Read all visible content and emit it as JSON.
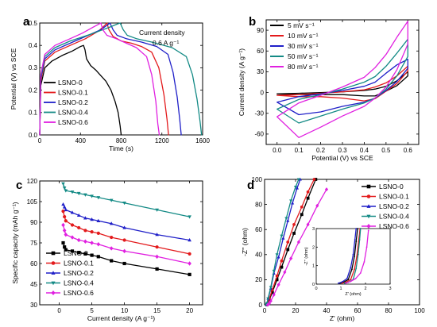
{
  "colors": {
    "LSNO-0": "#000000",
    "LSNO-0.1": "#e31a1c",
    "LSNO-0.2": "#1f1fc8",
    "LSNO-0.4": "#138a85",
    "LSNO-0.6": "#e020e0"
  },
  "chart_data": [
    {
      "panel": "a",
      "type": "line",
      "xlabel": "Time (s)",
      "ylabel": "Potential (V) vs SCE",
      "xlim": [
        0,
        1600
      ],
      "ylim": [
        0,
        0.5
      ],
      "xticks": [
        "0",
        "400",
        "800",
        "1200",
        "1600"
      ],
      "yticks": [
        "0.0",
        "0.1",
        "0.2",
        "0.3",
        "0.4",
        "0.5"
      ],
      "annotation": [
        "Current density",
        "0.6 A g⁻¹"
      ],
      "legend": {
        "position": "bottom-left",
        "entries": [
          "LSNO-0",
          "LSNO-0.1",
          "LSNO-0.2",
          "LSNO-0.4",
          "LSNO-0.6"
        ]
      },
      "series": [
        {
          "name": "LSNO-0",
          "x": [
            0,
            10,
            50,
            120,
            220,
            320,
            400,
            430,
            445,
            460,
            500,
            550,
            600,
            650,
            700,
            740,
            770,
            790,
            800
          ],
          "y": [
            0,
            0.22,
            0.3,
            0.33,
            0.355,
            0.375,
            0.395,
            0.4,
            0.38,
            0.34,
            0.31,
            0.29,
            0.265,
            0.24,
            0.2,
            0.15,
            0.1,
            0.04,
            0
          ]
        },
        {
          "name": "LSNO-0.1",
          "x": [
            0,
            10,
            50,
            150,
            300,
            450,
            580,
            640,
            660,
            680,
            720,
            800,
            900,
            1000,
            1100,
            1170,
            1220,
            1250,
            1265
          ],
          "y": [
            0,
            0.24,
            0.33,
            0.37,
            0.4,
            0.43,
            0.465,
            0.49,
            0.5,
            0.47,
            0.44,
            0.42,
            0.41,
            0.395,
            0.37,
            0.3,
            0.18,
            0.07,
            0
          ]
        },
        {
          "name": "LSNO-0.2",
          "x": [
            0,
            10,
            50,
            150,
            300,
            450,
            600,
            660,
            690,
            720,
            760,
            850,
            1000,
            1150,
            1260,
            1310,
            1350,
            1375,
            1390
          ],
          "y": [
            0,
            0.25,
            0.34,
            0.38,
            0.41,
            0.44,
            0.47,
            0.49,
            0.5,
            0.47,
            0.445,
            0.43,
            0.415,
            0.395,
            0.36,
            0.28,
            0.17,
            0.07,
            0
          ]
        },
        {
          "name": "LSNO-0.4",
          "x": [
            0,
            10,
            50,
            150,
            300,
            500,
            680,
            760,
            790,
            820,
            860,
            950,
            1100,
            1300,
            1440,
            1500,
            1545,
            1575,
            1590
          ],
          "y": [
            0,
            0.26,
            0.35,
            0.39,
            0.42,
            0.45,
            0.48,
            0.495,
            0.5,
            0.47,
            0.445,
            0.43,
            0.415,
            0.39,
            0.35,
            0.27,
            0.16,
            0.06,
            0
          ]
        },
        {
          "name": "LSNO-0.6",
          "x": [
            0,
            10,
            50,
            150,
            300,
            420,
            520,
            580,
            600,
            620,
            660,
            750,
            850,
            950,
            1050,
            1100,
            1140,
            1160,
            1175
          ],
          "y": [
            0,
            0.27,
            0.36,
            0.4,
            0.43,
            0.455,
            0.48,
            0.495,
            0.5,
            0.47,
            0.445,
            0.43,
            0.41,
            0.39,
            0.35,
            0.27,
            0.15,
            0.05,
            0
          ]
        }
      ]
    },
    {
      "panel": "b",
      "type": "line",
      "xlabel": "Potential (V) vs SCE",
      "ylabel": "Current density (A g⁻¹)",
      "xlim": [
        -0.05,
        0.65
      ],
      "ylim": [
        -75,
        105
      ],
      "xticks": [
        "0.0",
        "0.1",
        "0.2",
        "0.3",
        "0.4",
        "0.5",
        "0.6"
      ],
      "yticks": [
        "-60",
        "-30",
        "0",
        "30",
        "60",
        "90"
      ],
      "legend": {
        "position": "top-left",
        "entries": [
          "5 mV s⁻¹",
          "10 mV s⁻¹",
          "30 mV s⁻¹",
          "50 mV s⁻¹",
          "80 mV s⁻¹"
        ]
      },
      "series": [
        {
          "name": "5 mV s⁻¹",
          "color": "#000000",
          "x": [
            0,
            0.1,
            0.2,
            0.3,
            0.4,
            0.45,
            0.5,
            0.55,
            0.6,
            0.6,
            0.55,
            0.5,
            0.45,
            0.4,
            0.3,
            0.2,
            0.1,
            0
          ],
          "y": [
            -2,
            -1,
            0,
            1,
            3,
            5,
            9,
            17,
            30,
            24,
            10,
            2,
            -5,
            -5,
            -3,
            -3,
            -3,
            -2
          ]
        },
        {
          "name": "10 mV s⁻¹",
          "color": "#e31a1c",
          "x": [
            0,
            0.1,
            0.2,
            0.3,
            0.4,
            0.45,
            0.5,
            0.55,
            0.6,
            0.6,
            0.55,
            0.5,
            0.45,
            0.4,
            0.3,
            0.2,
            0.1,
            0
          ],
          "y": [
            -4,
            -3,
            -1,
            1,
            4,
            8,
            14,
            24,
            38,
            31,
            13,
            2,
            -9,
            -12,
            -8,
            -6,
            -6,
            -4
          ]
        },
        {
          "name": "30 mV s⁻¹",
          "color": "#1f1fc8",
          "x": [
            0,
            0.1,
            0.2,
            0.3,
            0.4,
            0.45,
            0.5,
            0.55,
            0.6,
            0.6,
            0.55,
            0.5,
            0.45,
            0.4,
            0.3,
            0.2,
            0.1,
            0
          ],
          "y": [
            -14,
            -6,
            -2,
            3,
            9,
            15,
            28,
            40,
            48,
            35,
            16,
            3,
            -8,
            -14,
            -20,
            -28,
            -32,
            -14
          ]
        },
        {
          "name": "50 mV s⁻¹",
          "color": "#138a85",
          "x": [
            0,
            0.1,
            0.2,
            0.3,
            0.4,
            0.45,
            0.5,
            0.55,
            0.6,
            0.6,
            0.55,
            0.5,
            0.45,
            0.4,
            0.3,
            0.2,
            0.1,
            0
          ],
          "y": [
            -24,
            -10,
            -3,
            5,
            15,
            23,
            38,
            57,
            77,
            52,
            24,
            5,
            -8,
            -15,
            -24,
            -34,
            -44,
            -24
          ]
        },
        {
          "name": "80 mV s⁻¹",
          "color": "#e020e0",
          "x": [
            0,
            0.1,
            0.2,
            0.3,
            0.4,
            0.45,
            0.5,
            0.55,
            0.6,
            0.6,
            0.55,
            0.5,
            0.45,
            0.4,
            0.3,
            0.2,
            0.1,
            0
          ],
          "y": [
            -35,
            -15,
            -4,
            8,
            22,
            36,
            55,
            80,
            103,
            70,
            33,
            8,
            -8,
            -20,
            -34,
            -50,
            -65,
            -35
          ]
        }
      ]
    },
    {
      "panel": "c",
      "type": "line",
      "xlabel": "Current density (A g⁻¹)",
      "ylabel": "Specific capacity (mAh g⁻¹)",
      "xlim": [
        -3,
        22
      ],
      "ylim": [
        30,
        120
      ],
      "xticks": [
        "0",
        "5",
        "10",
        "15",
        "20"
      ],
      "yticks": [
        "30",
        "45",
        "60",
        "75",
        "90",
        "105",
        "120"
      ],
      "legend": {
        "position": "bottom-left",
        "entries": [
          "LSNO-0",
          "LSNO-0.1",
          "LSNO-0.2",
          "LSNO-0.4",
          "LSNO-0.6"
        ]
      },
      "series": [
        {
          "name": "LSNO-0",
          "marker": "square",
          "x": [
            0.6,
            0.8,
            1,
            2,
            3,
            4,
            5,
            6,
            8,
            10,
            15,
            20
          ],
          "y": [
            75,
            72,
            70,
            69,
            68,
            67,
            66,
            65,
            62,
            60,
            56,
            52
          ]
        },
        {
          "name": "LSNO-0.1",
          "marker": "circle",
          "x": [
            0.6,
            0.8,
            1,
            2,
            3,
            4,
            5,
            6,
            8,
            10,
            15,
            20
          ],
          "y": [
            98,
            94,
            91,
            88,
            86,
            84,
            83,
            82,
            79,
            77,
            72,
            67
          ]
        },
        {
          "name": "LSNO-0.2",
          "marker": "triangle-up",
          "x": [
            0.6,
            0.8,
            1,
            2,
            3,
            4,
            5,
            6,
            8,
            10,
            15,
            20
          ],
          "y": [
            103,
            101,
            99,
            97,
            95,
            93,
            92,
            91,
            89,
            86,
            81,
            77
          ]
        },
        {
          "name": "LSNO-0.4",
          "marker": "triangle-down",
          "x": [
            0.6,
            0.8,
            1,
            2,
            3,
            4,
            5,
            6,
            8,
            10,
            15,
            20
          ],
          "y": [
            118,
            115,
            113,
            112,
            111,
            110,
            109,
            108,
            106,
            104,
            99,
            94
          ]
        },
        {
          "name": "LSNO-0.6",
          "marker": "diamond",
          "x": [
            0.6,
            0.8,
            1,
            2,
            3,
            4,
            5,
            6,
            8,
            10,
            15,
            20
          ],
          "y": [
            88,
            84,
            81,
            79,
            77,
            76,
            75,
            74,
            71,
            69,
            65,
            60
          ]
        }
      ]
    },
    {
      "panel": "d",
      "type": "scatter",
      "xlabel": "Z' (ohm)",
      "ylabel": "-Z'' (ohm)",
      "xlim": [
        0,
        100
      ],
      "ylim": [
        0,
        100
      ],
      "xticks": [
        "0",
        "20",
        "40",
        "60",
        "80",
        "100"
      ],
      "yticks": [
        "0",
        "20",
        "40",
        "60",
        "80",
        "100"
      ],
      "legend": {
        "position": "top-right",
        "entries": [
          "LSNO-0",
          "LSNO-0.1",
          "LSNO-0.2",
          "LSNO-0.4",
          "LSNO-0.6"
        ]
      },
      "series": [
        {
          "name": "LSNO-0",
          "marker": "square",
          "x": [
            1.5,
            2,
            3,
            5,
            8,
            11,
            15,
            19,
            24,
            28,
            33
          ],
          "y": [
            0,
            1,
            4,
            10,
            20,
            30,
            44,
            57,
            72,
            85,
            100
          ]
        },
        {
          "name": "LSNO-0.1",
          "marker": "circle",
          "x": [
            1.4,
            2,
            3,
            5,
            8,
            11,
            15,
            19,
            24,
            28,
            32
          ],
          "y": [
            0,
            1,
            5,
            12,
            23,
            35,
            50,
            64,
            78,
            90,
            100
          ]
        },
        {
          "name": "LSNO-0.2",
          "marker": "triangle-up",
          "x": [
            1.2,
            1.6,
            2.3,
            4,
            6,
            9,
            12,
            15,
            18,
            21,
            23
          ],
          "y": [
            0,
            1,
            5,
            13,
            25,
            38,
            53,
            67,
            81,
            93,
            100
          ]
        },
        {
          "name": "LSNO-0.4",
          "marker": "triangle-down",
          "x": [
            1.1,
            1.5,
            2.2,
            4,
            6,
            8,
            11,
            14,
            17,
            20,
            22
          ],
          "y": [
            0,
            1,
            5,
            14,
            27,
            40,
            55,
            69,
            83,
            94,
            100
          ]
        },
        {
          "name": "LSNO-0.6",
          "marker": "diamond",
          "x": [
            2,
            3,
            4,
            6,
            9,
            13,
            17,
            22,
            28,
            34,
            40
          ],
          "y": [
            0,
            1,
            3,
            8,
            16,
            26,
            37,
            50,
            64,
            79,
            92
          ]
        }
      ],
      "inset": {
        "xlabel": "Z' (ohm)",
        "ylabel": "-Z'' (ohm)",
        "xlim": [
          0,
          3
        ],
        "ylim": [
          0,
          3
        ],
        "xticks": [
          "0",
          "1",
          "2",
          "3"
        ],
        "yticks": [
          "0",
          "1",
          "2",
          "3"
        ],
        "series": [
          {
            "name": "LSNO-0",
            "x": [
              0.95,
              1.1,
              1.3,
              1.45,
              1.55,
              1.62,
              1.68
            ],
            "y": [
              0.05,
              0.1,
              0.25,
              0.8,
              1.5,
              2.3,
              3
            ]
          },
          {
            "name": "LSNO-0.1",
            "x": [
              1.05,
              1.2,
              1.4,
              1.55,
              1.65,
              1.72,
              1.78
            ],
            "y": [
              0.05,
              0.1,
              0.25,
              0.8,
              1.5,
              2.3,
              3
            ]
          },
          {
            "name": "LSNO-0.2",
            "x": [
              0.9,
              1.05,
              1.25,
              1.4,
              1.5,
              1.57,
              1.62
            ],
            "y": [
              0.05,
              0.12,
              0.3,
              0.9,
              1.6,
              2.4,
              3
            ]
          },
          {
            "name": "LSNO-0.4",
            "x": [
              1.15,
              1.3,
              1.5,
              1.62,
              1.7,
              1.76,
              1.8
            ],
            "y": [
              0.05,
              0.1,
              0.25,
              0.85,
              1.6,
              2.4,
              3
            ]
          },
          {
            "name": "LSNO-0.6",
            "x": [
              1.2,
              1.4,
              1.6,
              1.8,
              1.95,
              2.05,
              2.12
            ],
            "y": [
              0.05,
              0.15,
              0.3,
              0.6,
              1.2,
              2.0,
              2.9
            ]
          }
        ]
      }
    }
  ]
}
